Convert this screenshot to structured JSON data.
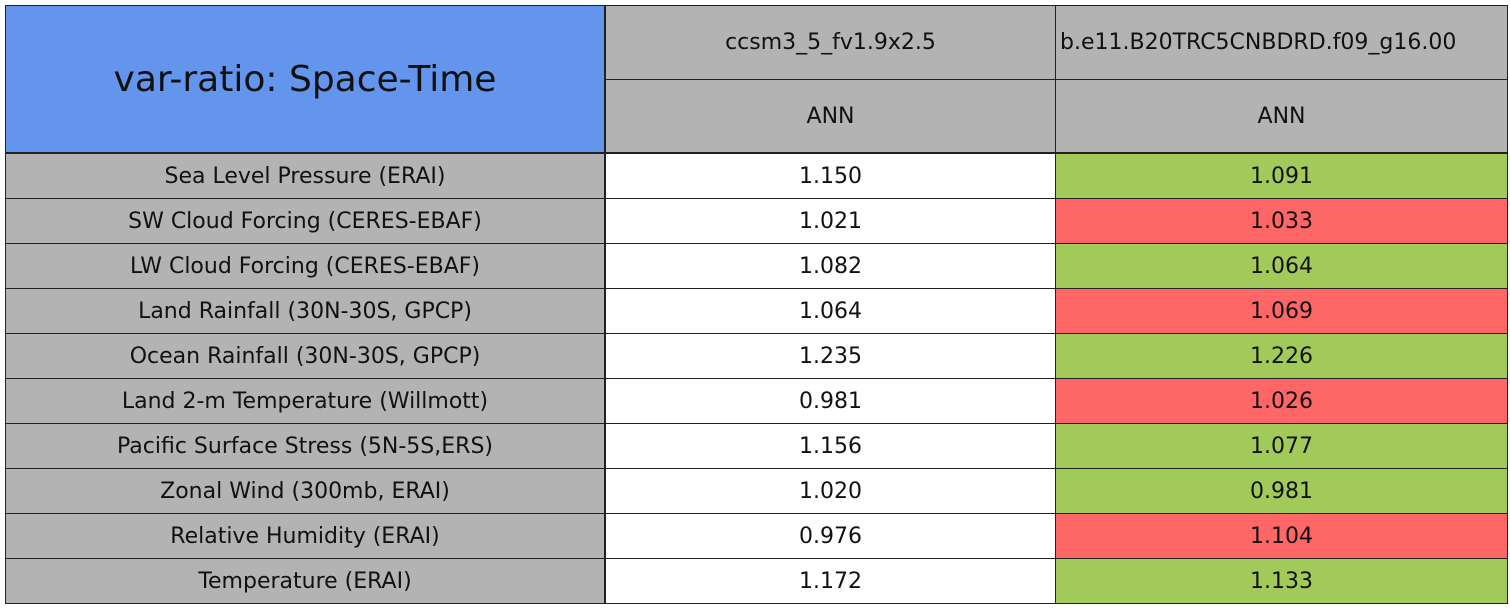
{
  "header": {
    "title": "var-ratio: Space-Time",
    "columns": [
      {
        "case": "ccsm3_5_fv1.9x2.5",
        "season": "ANN"
      },
      {
        "case": "b.e11.B20TRC5CNBDRD.f09_g16.00",
        "season": "ANN"
      }
    ]
  },
  "table": {
    "rows": [
      {
        "label": "Sea Level Pressure (ERAI)",
        "cells": [
          "1.150",
          "1.091"
        ],
        "colors": [
          "#ffffff",
          "#a2ca5a"
        ]
      },
      {
        "label": "SW Cloud Forcing (CERES-EBAF)",
        "cells": [
          "1.021",
          "1.033"
        ],
        "colors": [
          "#ffffff",
          "#ff6666"
        ]
      },
      {
        "label": "LW Cloud Forcing (CERES-EBAF)",
        "cells": [
          "1.082",
          "1.064"
        ],
        "colors": [
          "#ffffff",
          "#a2ca5a"
        ]
      },
      {
        "label": "Land Rainfall (30N-30S, GPCP)",
        "cells": [
          "1.064",
          "1.069"
        ],
        "colors": [
          "#ffffff",
          "#ff6666"
        ]
      },
      {
        "label": "Ocean Rainfall (30N-30S, GPCP)",
        "cells": [
          "1.235",
          "1.226"
        ],
        "colors": [
          "#ffffff",
          "#a2ca5a"
        ]
      },
      {
        "label": "Land 2-m Temperature (Willmott)",
        "cells": [
          "0.981",
          "1.026"
        ],
        "colors": [
          "#ffffff",
          "#ff6666"
        ]
      },
      {
        "label": "Pacific Surface Stress (5N-5S,ERS)",
        "cells": [
          "1.156",
          "1.077"
        ],
        "colors": [
          "#ffffff",
          "#a2ca5a"
        ]
      },
      {
        "label": "Zonal Wind (300mb, ERAI)",
        "cells": [
          "1.020",
          "0.981"
        ],
        "colors": [
          "#ffffff",
          "#a2ca5a"
        ]
      },
      {
        "label": "Relative Humidity (ERAI)",
        "cells": [
          "0.976",
          "1.104"
        ],
        "colors": [
          "#ffffff",
          "#ff6666"
        ]
      },
      {
        "label": "Temperature (ERAI)",
        "cells": [
          "1.172",
          "1.133"
        ],
        "colors": [
          "#ffffff",
          "#a2ca5a"
        ]
      }
    ]
  }
}
